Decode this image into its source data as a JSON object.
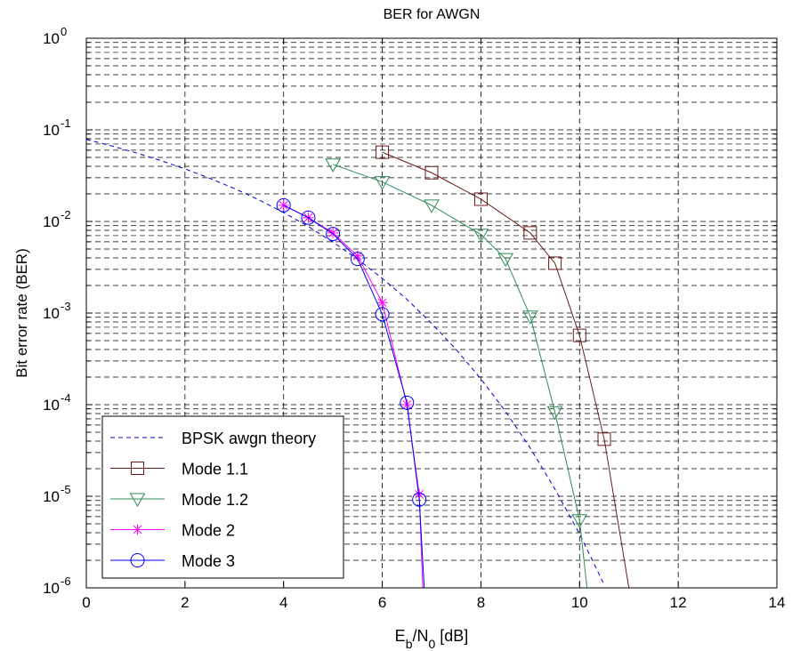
{
  "chart_data": {
    "type": "line",
    "title": "BER for AWGN",
    "xlabel_main": "E",
    "xlabel_sub1": "b",
    "xlabel_mid": "/N",
    "xlabel_sub2": "0",
    "xlabel_tail": " [dB]",
    "ylabel": "Bit error rate (BER)",
    "xlim": [
      0,
      14
    ],
    "ylim": [
      1e-06,
      1
    ],
    "yscale": "log",
    "grid": true,
    "legend_position": "bottom-left",
    "xticks": [
      "0",
      "2",
      "4",
      "6",
      "8",
      "10",
      "12",
      "14"
    ],
    "yticks": [
      {
        "base": "10",
        "exp": "0"
      },
      {
        "base": "10",
        "exp": "-1"
      },
      {
        "base": "10",
        "exp": "-2"
      },
      {
        "base": "10",
        "exp": "-3"
      },
      {
        "base": "10",
        "exp": "-4"
      },
      {
        "base": "10",
        "exp": "-5"
      },
      {
        "base": "10",
        "exp": "-6"
      }
    ],
    "series": [
      {
        "name": "BPSK awgn theory",
        "color": "#0000cc",
        "style": "dashed",
        "marker": "none",
        "x": [
          0,
          0.5,
          1,
          1.5,
          2,
          2.5,
          3,
          3.5,
          4,
          4.5,
          5,
          5.5,
          6,
          6.5,
          7,
          7.5,
          8,
          8.5,
          9,
          9.5,
          10,
          10.5
        ],
        "y": [
          0.0786,
          0.0671,
          0.0563,
          0.0464,
          0.0375,
          0.0296,
          0.0229,
          0.0172,
          0.0125,
          0.00882,
          0.00595,
          0.00386,
          0.00239,
          0.00141,
          0.000773,
          0.000398,
          0.000191,
          8.43e-05,
          3.36e-05,
          1.2e-05,
          3.87e-06,
          1.08e-06
        ]
      },
      {
        "name": "Mode 1.1",
        "color": "#6b1a1a",
        "style": "solid",
        "marker": "square",
        "x": [
          6,
          7,
          8,
          9,
          9.5,
          10,
          10.5,
          11
        ],
        "y": [
          0.057,
          0.034,
          0.0175,
          0.0075,
          0.0035,
          0.00057,
          4.2e-05,
          1e-06
        ],
        "markers_x": [
          6,
          7,
          8,
          9,
          9.5,
          10,
          10.5
        ],
        "markers_y": [
          0.057,
          0.034,
          0.0175,
          0.0075,
          0.0035,
          0.00057,
          4.2e-05
        ]
      },
      {
        "name": "Mode 1.2",
        "color": "#2e8b57",
        "style": "solid",
        "marker": "triangle-down",
        "x": [
          5,
          6,
          7,
          8,
          8.5,
          9,
          9.5,
          10,
          10.15
        ],
        "y": [
          0.042,
          0.027,
          0.015,
          0.0072,
          0.0039,
          0.00092,
          8.3e-05,
          5.5e-06,
          1e-06
        ],
        "markers_x": [
          5,
          6,
          7,
          8,
          8.5,
          9,
          9.5,
          10
        ],
        "markers_y": [
          0.042,
          0.027,
          0.015,
          0.0072,
          0.0039,
          0.00092,
          8.3e-05,
          5.5e-06
        ]
      },
      {
        "name": "Mode 2",
        "color": "#ff00ff",
        "style": "solid",
        "marker": "asterisk",
        "x": [
          4,
          4.5,
          5,
          5.5,
          6,
          6.5,
          6.75,
          6.82
        ],
        "y": [
          0.015,
          0.011,
          0.0075,
          0.0042,
          0.0013,
          0.0001,
          1.05e-05,
          1e-06
        ],
        "markers_x": [
          4,
          4.5,
          5,
          5.5,
          6,
          6.5,
          6.75
        ],
        "markers_y": [
          0.015,
          0.011,
          0.0075,
          0.0042,
          0.0013,
          0.0001,
          1.05e-05
        ]
      },
      {
        "name": "Mode 3",
        "color": "#0000ff",
        "style": "solid",
        "marker": "circle",
        "x": [
          4,
          4.5,
          5,
          5.5,
          6,
          6.5,
          6.75,
          6.85
        ],
        "y": [
          0.015,
          0.011,
          0.0073,
          0.0039,
          0.00097,
          0.000105,
          9.2e-06,
          1e-06
        ],
        "markers_x": [
          4,
          4.5,
          5,
          5.5,
          6,
          6.5,
          6.75
        ],
        "markers_y": [
          0.015,
          0.011,
          0.0073,
          0.0039,
          0.00097,
          0.000105,
          9.2e-06
        ]
      }
    ]
  }
}
